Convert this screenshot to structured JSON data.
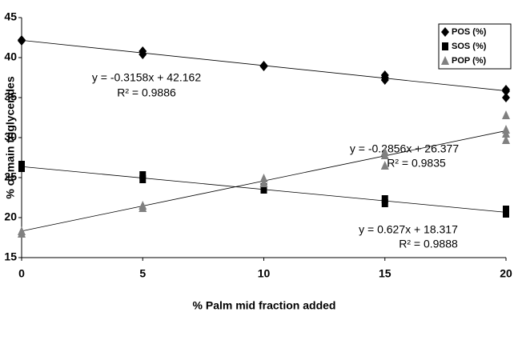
{
  "chart_data": {
    "type": "scatter",
    "x_label": "% Palm mid fraction added",
    "y_label": "% of main triglycerides",
    "xlim": [
      0,
      20
    ],
    "xticks": [
      0,
      5,
      10,
      15,
      20
    ],
    "ylim": [
      15,
      45
    ],
    "yticks": [
      15,
      20,
      25,
      30,
      35,
      40,
      45
    ],
    "legend": "top-right",
    "series": [
      {
        "name": "POS (%)",
        "color": "#000000",
        "marker": "diamond",
        "x": [
          0,
          0,
          5,
          5,
          10,
          10,
          15,
          15,
          15,
          20,
          20,
          20
        ],
        "values": [
          42.2,
          42.1,
          40.8,
          40.4,
          39.0,
          38.9,
          37.8,
          37.5,
          37.2,
          36.0,
          35.8,
          35.0
        ],
        "trendline": {
          "slope": -0.3158,
          "intercept": 42.162,
          "equation": "y = -0.3158x + 42.162",
          "r2": "R² = 0.9886"
        }
      },
      {
        "name": "SOS (%)",
        "color": "#000000",
        "marker": "square",
        "x": [
          0,
          0,
          5,
          5,
          10,
          10,
          15,
          15,
          20,
          20
        ],
        "values": [
          26.6,
          26.2,
          25.3,
          24.8,
          23.8,
          23.5,
          22.3,
          21.8,
          21.0,
          20.5
        ],
        "trendline": {
          "slope": -0.2856,
          "intercept": 26.377,
          "equation": "y = -0.2856x + 26.377",
          "r2": "R² = 0.9835"
        }
      },
      {
        "name": "POP (%)",
        "color": "#808080",
        "marker": "triangle",
        "x": [
          0,
          0,
          5,
          5,
          10,
          10,
          15,
          15,
          15,
          20,
          20,
          20,
          20
        ],
        "values": [
          18.3,
          18.0,
          21.5,
          21.2,
          24.9,
          24.3,
          28.2,
          27.8,
          26.5,
          32.8,
          31.0,
          30.5,
          29.7
        ],
        "trendline": {
          "slope": 0.627,
          "intercept": 18.317,
          "equation": "y = 0.627x + 18.317",
          "r2": "R² = 0.9888"
        }
      }
    ]
  }
}
